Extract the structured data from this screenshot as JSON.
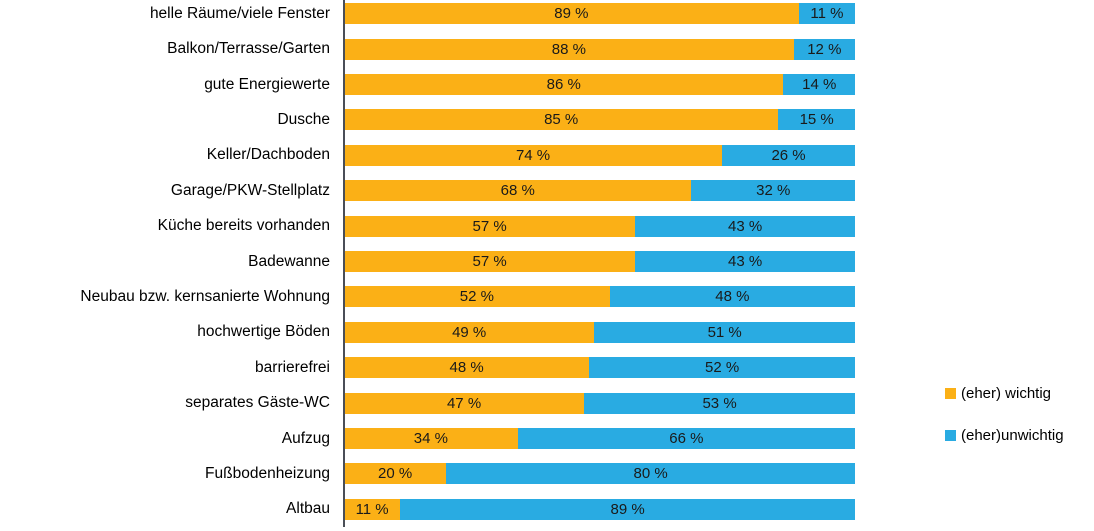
{
  "chart_data": {
    "type": "bar",
    "orientation": "horizontal",
    "stacked": true,
    "percent_total": 100,
    "grid": false,
    "legend_position": "right",
    "value_suffix": " %",
    "xlim": [
      0,
      100
    ],
    "axis_line_color": "#4a4e57",
    "categories": [
      "helle Räume/viele Fenster",
      "Balkon/Terrasse/Garten",
      "gute Energiewerte",
      "Dusche",
      "Keller/Dachboden",
      "Garage/PKW-Stellplatz",
      "Küche bereits vorhanden",
      "Badewanne",
      "Neubau bzw. kernsanierte Wohnung",
      "hochwertige Böden",
      "barrierefrei",
      "separates Gäste-WC",
      "Aufzug",
      "Fußbodenheizung",
      "Altbau"
    ],
    "series": [
      {
        "name": "(eher) wichtig",
        "color": "#FBB016",
        "values": [
          89,
          88,
          86,
          85,
          74,
          68,
          57,
          57,
          52,
          49,
          48,
          47,
          34,
          20,
          11
        ]
      },
      {
        "name": "(eher)unwichtig",
        "color": "#29ABE2",
        "values": [
          11,
          12,
          14,
          15,
          26,
          32,
          43,
          43,
          48,
          51,
          52,
          53,
          66,
          80,
          89
        ]
      }
    ]
  }
}
